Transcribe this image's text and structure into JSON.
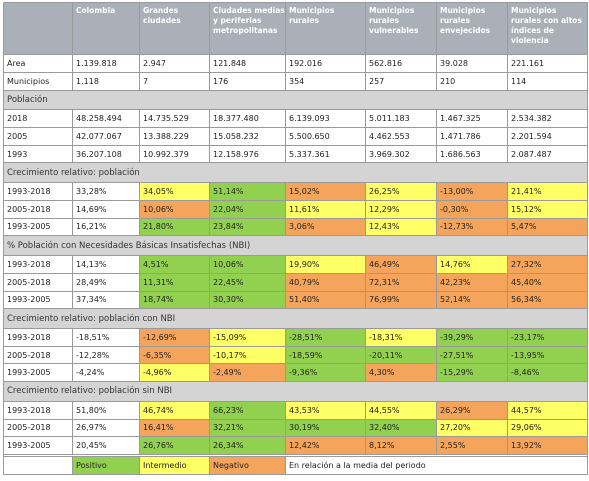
{
  "header": [
    "",
    "Colombia",
    "Grandes ciudades",
    "Ciudades medias y periferias metropolitanas",
    "Municipios rurales",
    "Municipios rurales vulnerables",
    "Municipios rurales envejecidos",
    "Municipios rurales con altos índices de violencia"
  ],
  "sections": [
    {
      "kind": "data",
      "label": "Área",
      "cells": [
        {
          "v": "1.139.818",
          "c": "white"
        },
        {
          "v": "2.947",
          "c": "white"
        },
        {
          "v": "121.848",
          "c": "white"
        },
        {
          "v": "192.016",
          "c": "white"
        },
        {
          "v": "562.816",
          "c": "white"
        },
        {
          "v": "39.028",
          "c": "white"
        },
        {
          "v": "221.161",
          "c": "white"
        }
      ]
    },
    {
      "kind": "data",
      "label": "Municipios",
      "cells": [
        {
          "v": "1.118",
          "c": "white"
        },
        {
          "v": "7",
          "c": "white"
        },
        {
          "v": "176",
          "c": "white"
        },
        {
          "v": "354",
          "c": "white"
        },
        {
          "v": "257",
          "c": "white"
        },
        {
          "v": "210",
          "c": "white"
        },
        {
          "v": "114",
          "c": "white"
        }
      ]
    },
    {
      "kind": "section",
      "label": "Población"
    },
    {
      "kind": "data",
      "label": "2018",
      "cells": [
        {
          "v": "48.258.494",
          "c": "white"
        },
        {
          "v": "14.735.529",
          "c": "white"
        },
        {
          "v": "18.377.480",
          "c": "white"
        },
        {
          "v": "6.139.093",
          "c": "white"
        },
        {
          "v": "5.011.183",
          "c": "white"
        },
        {
          "v": "1.467.325",
          "c": "white"
        },
        {
          "v": "2.534.382",
          "c": "white"
        }
      ]
    },
    {
      "kind": "data",
      "label": "2005",
      "cells": [
        {
          "v": "42.077.067",
          "c": "white"
        },
        {
          "v": "13.388.229",
          "c": "white"
        },
        {
          "v": "15.058.232",
          "c": "white"
        },
        {
          "v": "5.500.650",
          "c": "white"
        },
        {
          "v": "4.462.553",
          "c": "white"
        },
        {
          "v": "1.471.786",
          "c": "white"
        },
        {
          "v": "2.201.594",
          "c": "white"
        }
      ]
    },
    {
      "kind": "data",
      "label": "1993",
      "cells": [
        {
          "v": "36.207.108",
          "c": "white"
        },
        {
          "v": "10.992.379",
          "c": "white"
        },
        {
          "v": "12.158.976",
          "c": "white"
        },
        {
          "v": "5.337.361",
          "c": "white"
        },
        {
          "v": "3.969.302",
          "c": "white"
        },
        {
          "v": "1.686.563",
          "c": "white"
        },
        {
          "v": "2.087.487",
          "c": "white"
        }
      ]
    },
    {
      "kind": "section",
      "label": "Crecimiento relativo: población"
    },
    {
      "kind": "data",
      "label": "1993-2018",
      "cells": [
        {
          "v": "33,28%",
          "c": "white"
        },
        {
          "v": "34,05%",
          "c": "yellow"
        },
        {
          "v": "51,14%",
          "c": "green"
        },
        {
          "v": "15,02%",
          "c": "orange"
        },
        {
          "v": "26,25%",
          "c": "yellow"
        },
        {
          "v": "-13,00%",
          "c": "orange"
        },
        {
          "v": "21,41%",
          "c": "yellow"
        }
      ]
    },
    {
      "kind": "data",
      "label": "2005-2018",
      "cells": [
        {
          "v": "14,69%",
          "c": "white"
        },
        {
          "v": "10,06%",
          "c": "orange"
        },
        {
          "v": "22,04%",
          "c": "green"
        },
        {
          "v": "11,61%",
          "c": "yellow"
        },
        {
          "v": "12,29%",
          "c": "yellow"
        },
        {
          "v": "-0,30%",
          "c": "orange"
        },
        {
          "v": "15,12%",
          "c": "yellow"
        }
      ]
    },
    {
      "kind": "data",
      "label": "1993-2005",
      "cells": [
        {
          "v": "16,21%",
          "c": "white"
        },
        {
          "v": "21,80%",
          "c": "green"
        },
        {
          "v": "23,84%",
          "c": "green"
        },
        {
          "v": "3,06%",
          "c": "orange"
        },
        {
          "v": "12,43%",
          "c": "yellow"
        },
        {
          "v": "-12,73%",
          "c": "orange"
        },
        {
          "v": "5,47%",
          "c": "orange"
        }
      ]
    },
    {
      "kind": "section",
      "label": "% Población con Necesidades Básicas Insatisfechas (NBI)"
    },
    {
      "kind": "data",
      "label": "1993-2018",
      "cells": [
        {
          "v": "14,13%",
          "c": "white"
        },
        {
          "v": "4,51%",
          "c": "green"
        },
        {
          "v": "10,06%",
          "c": "green"
        },
        {
          "v": "19,90%",
          "c": "yellow"
        },
        {
          "v": "46,49%",
          "c": "orange"
        },
        {
          "v": "14,76%",
          "c": "yellow"
        },
        {
          "v": "27,32%",
          "c": "orange"
        }
      ]
    },
    {
      "kind": "data",
      "label": "2005-2018",
      "cells": [
        {
          "v": "28,49%",
          "c": "white"
        },
        {
          "v": "11,31%",
          "c": "green"
        },
        {
          "v": "22,45%",
          "c": "green"
        },
        {
          "v": "40,79%",
          "c": "orange"
        },
        {
          "v": "72,31%",
          "c": "orange"
        },
        {
          "v": "42,23%",
          "c": "orange"
        },
        {
          "v": "45,40%",
          "c": "orange"
        }
      ]
    },
    {
      "kind": "data",
      "label": "1993-2005",
      "cells": [
        {
          "v": "37,34%",
          "c": "white"
        },
        {
          "v": "18,74%",
          "c": "green"
        },
        {
          "v": "30,30%",
          "c": "green"
        },
        {
          "v": "51,40%",
          "c": "orange"
        },
        {
          "v": "76,99%",
          "c": "orange"
        },
        {
          "v": "52,14%",
          "c": "orange"
        },
        {
          "v": "56,34%",
          "c": "orange"
        }
      ]
    },
    {
      "kind": "section",
      "label": "Crecimiento relativo: población con NBI"
    },
    {
      "kind": "data",
      "label": "1993-2018",
      "cells": [
        {
          "v": "-18,51%",
          "c": "white"
        },
        {
          "v": "-12,69%",
          "c": "orange"
        },
        {
          "v": "-15,09%",
          "c": "yellow"
        },
        {
          "v": "-28,51%",
          "c": "green"
        },
        {
          "v": "-18,31%",
          "c": "yellow"
        },
        {
          "v": "-39,29%",
          "c": "green"
        },
        {
          "v": "-23,17%",
          "c": "green"
        }
      ]
    },
    {
      "kind": "data",
      "label": "2005-2018",
      "cells": [
        {
          "v": "-12,28%",
          "c": "white"
        },
        {
          "v": "-6,35%",
          "c": "orange"
        },
        {
          "v": "-10,17%",
          "c": "yellow"
        },
        {
          "v": "-18,59%",
          "c": "green"
        },
        {
          "v": "-20,11%",
          "c": "green"
        },
        {
          "v": "-27,51%",
          "c": "green"
        },
        {
          "v": "-13,95%",
          "c": "green"
        }
      ]
    },
    {
      "kind": "data",
      "label": "1993-2005",
      "cells": [
        {
          "v": "-4,24%",
          "c": "white"
        },
        {
          "v": "-4,96%",
          "c": "yellow"
        },
        {
          "v": "-2,49%",
          "c": "orange"
        },
        {
          "v": "-9,36%",
          "c": "green"
        },
        {
          "v": "4,30%",
          "c": "orange"
        },
        {
          "v": "-15,29%",
          "c": "green"
        },
        {
          "v": "-8,46%",
          "c": "green"
        }
      ]
    },
    {
      "kind": "section",
      "label": "Crecimiento relativo: población sin NBI"
    },
    {
      "kind": "data",
      "label": "1993-2018",
      "cells": [
        {
          "v": "51,80%",
          "c": "white"
        },
        {
          "v": "46,74%",
          "c": "yellow"
        },
        {
          "v": "66,23%",
          "c": "green"
        },
        {
          "v": "43,53%",
          "c": "yellow"
        },
        {
          "v": "44,55%",
          "c": "yellow"
        },
        {
          "v": "26,29%",
          "c": "orange"
        },
        {
          "v": "44,57%",
          "c": "yellow"
        }
      ]
    },
    {
      "kind": "data",
      "label": "2005-2018",
      "cells": [
        {
          "v": "26,97%",
          "c": "white"
        },
        {
          "v": "16,41%",
          "c": "orange"
        },
        {
          "v": "32,21%",
          "c": "green"
        },
        {
          "v": "30,19%",
          "c": "green"
        },
        {
          "v": "32,40%",
          "c": "green"
        },
        {
          "v": "27,20%",
          "c": "yellow"
        },
        {
          "v": "29,06%",
          "c": "yellow"
        }
      ]
    },
    {
      "kind": "data",
      "label": "1993-2005",
      "cells": [
        {
          "v": "20,45%",
          "c": "white"
        },
        {
          "v": "26,76%",
          "c": "green"
        },
        {
          "v": "26,34%",
          "c": "green"
        },
        {
          "v": "12,42%",
          "c": "orange"
        },
        {
          "v": "8,12%",
          "c": "orange"
        },
        {
          "v": "2,55%",
          "c": "orange"
        },
        {
          "v": "13,92%",
          "c": "orange"
        }
      ]
    }
  ],
  "legend": {
    "positive": "Positivo",
    "intermediate": "Intermedio",
    "negative": "Negativo",
    "note": "En relación a la media del periodo"
  },
  "colors": {
    "green": "#92d050",
    "yellow": "#ffff66",
    "orange": "#f5a45b",
    "header": "#aab0b8",
    "section": "#d4d4d4"
  }
}
